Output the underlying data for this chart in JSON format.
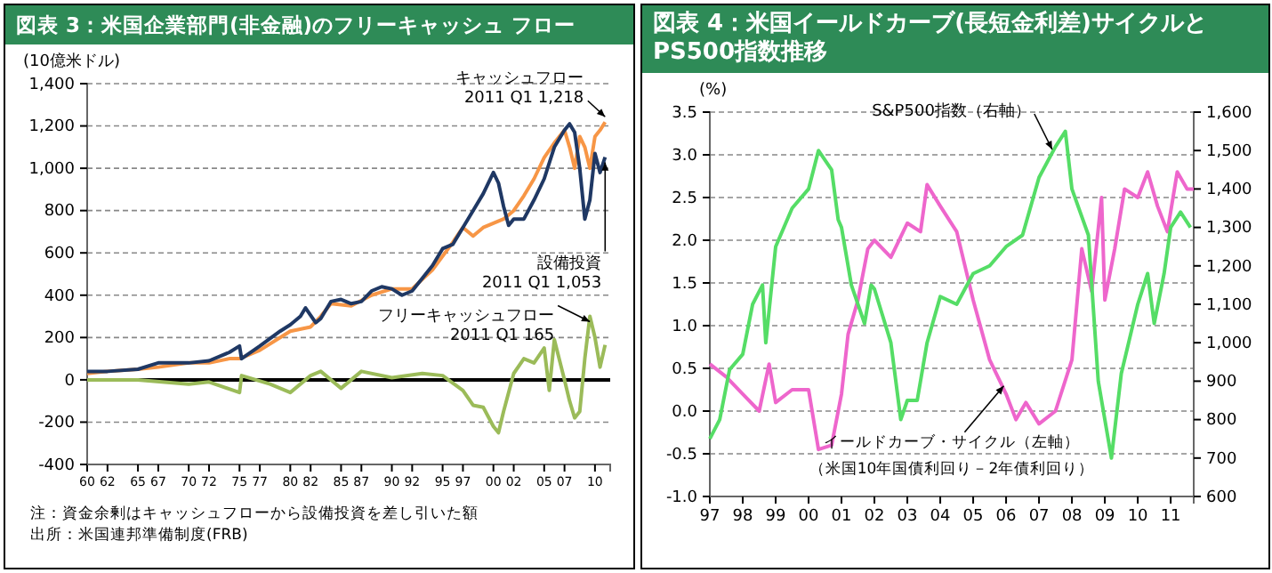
{
  "chart_data": [
    {
      "type": "line",
      "title": "図表 3：米国企業部門(非金融)のフリーキャッシュ フロー",
      "ylabel": "(10億米ドル)",
      "xlim": [
        1960,
        2011.5
      ],
      "xticks": [
        {
          "value": 1960,
          "label": "60"
        },
        {
          "value": 1962,
          "label": "62"
        },
        {
          "value": 1965,
          "label": "65"
        },
        {
          "value": 1967,
          "label": "67"
        },
        {
          "value": 1970,
          "label": "70"
        },
        {
          "value": 1972,
          "label": "72"
        },
        {
          "value": 1975,
          "label": "75"
        },
        {
          "value": 1977,
          "label": "77"
        },
        {
          "value": 1980,
          "label": "80"
        },
        {
          "value": 1982,
          "label": "82"
        },
        {
          "value": 1985,
          "label": "85"
        },
        {
          "value": 1987,
          "label": "87"
        },
        {
          "value": 1990,
          "label": "90"
        },
        {
          "value": 1992,
          "label": "92"
        },
        {
          "value": 1995,
          "label": "95"
        },
        {
          "value": 1997,
          "label": "97"
        },
        {
          "value": 2000,
          "label": "00"
        },
        {
          "value": 2002,
          "label": "02"
        },
        {
          "value": 2005,
          "label": "05"
        },
        {
          "value": 2007,
          "label": "07"
        },
        {
          "value": 2010,
          "label": "10"
        }
      ],
      "ylim": [
        -400,
        1400
      ],
      "yticks": [
        {
          "value": -400,
          "label": "-400"
        },
        {
          "value": -200,
          "label": "-200"
        },
        {
          "value": 0,
          "label": "0"
        },
        {
          "value": 200,
          "label": "200"
        },
        {
          "value": 400,
          "label": "400"
        },
        {
          "value": 600,
          "label": "600"
        },
        {
          "value": 800,
          "label": "800"
        },
        {
          "value": 1000,
          "label": "1,000"
        },
        {
          "value": 1200,
          "label": "1,200"
        },
        {
          "value": 1400,
          "label": "1,400"
        }
      ],
      "grid": "y",
      "marker": "none",
      "line_style": "solid",
      "series": [
        {
          "color": "#f79646",
          "x": [
            1960,
            1962,
            1965,
            1967,
            1970,
            1972,
            1974,
            1975,
            1977,
            1980,
            1982,
            1983,
            1984,
            1986,
            1988,
            1990,
            1992,
            1994,
            1996,
            1997,
            1998,
            1999,
            2000,
            2001,
            2002,
            2003,
            2004,
            2005,
            2006,
            2007,
            2007.5,
            2008,
            2008.5,
            2009,
            2009.5,
            2010,
            2010.5,
            2011
          ],
          "values": [
            30,
            40,
            50,
            60,
            80,
            80,
            100,
            100,
            140,
            230,
            250,
            300,
            360,
            350,
            400,
            430,
            430,
            520,
            650,
            720,
            680,
            720,
            740,
            760,
            800,
            870,
            950,
            1050,
            1120,
            1180,
            1100,
            1000,
            1150,
            1100,
            1000,
            1150,
            1180,
            1218
          ]
        },
        {
          "color": "#1f3864",
          "x": [
            1960,
            1962,
            1965,
            1967,
            1970,
            1972,
            1974,
            1975,
            1975.2,
            1977,
            1979,
            1980,
            1981,
            1981.5,
            1982.5,
            1983,
            1984,
            1985,
            1986,
            1987,
            1988,
            1989,
            1990,
            1991,
            1992,
            1993,
            1994,
            1995,
            1996,
            1997,
            1998,
            1999,
            2000,
            2000.5,
            2001,
            2001.5,
            2002,
            2003,
            2004,
            2005,
            2006,
            2007,
            2007.5,
            2008,
            2008.5,
            2009,
            2009.5,
            2010,
            2010.5,
            2011
          ],
          "values": [
            40,
            40,
            50,
            80,
            80,
            90,
            130,
            160,
            100,
            160,
            230,
            260,
            300,
            340,
            270,
            290,
            370,
            380,
            360,
            370,
            420,
            440,
            430,
            400,
            420,
            480,
            540,
            620,
            640,
            720,
            800,
            880,
            980,
            930,
            820,
            730,
            760,
            760,
            850,
            950,
            1100,
            1180,
            1210,
            1170,
            1000,
            760,
            850,
            1070,
            980,
            1053
          ]
        },
        {
          "color": "#9bbb59",
          "x": [
            1960,
            1965,
            1970,
            1972,
            1975,
            1975.2,
            1978,
            1980,
            1982,
            1983,
            1985,
            1987,
            1990,
            1993,
            1995,
            1997,
            1998,
            1999,
            2000,
            2000.5,
            2001,
            2002,
            2003,
            2004,
            2005,
            2005.5,
            2006,
            2007,
            2007.5,
            2008,
            2008.5,
            2009,
            2009.5,
            2010,
            2010.5,
            2011
          ],
          "values": [
            0,
            0,
            -20,
            -10,
            -60,
            20,
            -20,
            -60,
            20,
            40,
            -40,
            40,
            10,
            30,
            20,
            -50,
            -120,
            -130,
            -220,
            -250,
            -150,
            30,
            100,
            80,
            150,
            -50,
            190,
            0,
            -100,
            -180,
            -150,
            100,
            300,
            200,
            60,
            165
          ]
        }
      ],
      "ref_lines": [
        {
          "axis": "y",
          "value": 0,
          "color": "#000000"
        }
      ],
      "annotations": [
        {
          "text": "キャッシュフロー\n2011 Q1  1,218",
          "x": 2011,
          "y": 1218
        },
        {
          "text": "設備投資\n2011 Q1  1,053",
          "x": 2011,
          "y": 1053
        },
        {
          "text": "フリーキャッシュフロー\n2011 Q1  165",
          "x": 2009.5,
          "y": 300
        },
        "注：資金余剰はキャッシュフローから設備投資を差し引いた額",
        "出所：米国連邦準備制度(FRB)"
      ]
    },
    {
      "type": "line",
      "title": "図表 4：米国イールドカーブ(長短金利差)サイクルとPS500指数推移",
      "ylabel": "(%)",
      "xlim": [
        1997,
        2011.7
      ],
      "xticks": [
        {
          "value": 1997,
          "label": "97"
        },
        {
          "value": 1998,
          "label": "98"
        },
        {
          "value": 1999,
          "label": "99"
        },
        {
          "value": 2000,
          "label": "00"
        },
        {
          "value": 2001,
          "label": "01"
        },
        {
          "value": 2002,
          "label": "02"
        },
        {
          "value": 2003,
          "label": "03"
        },
        {
          "value": 2004,
          "label": "04"
        },
        {
          "value": 2005,
          "label": "05"
        },
        {
          "value": 2006,
          "label": "06"
        },
        {
          "value": 2007,
          "label": "07"
        },
        {
          "value": 2008,
          "label": "08"
        },
        {
          "value": 2009,
          "label": "09"
        },
        {
          "value": 2010,
          "label": "10"
        },
        {
          "value": 2011,
          "label": "11"
        }
      ],
      "ylim": [
        -1,
        3.5
      ],
      "yticks": [
        {
          "value": -1,
          "label": "-1.0"
        },
        {
          "value": -0.5,
          "label": "-0.5"
        },
        {
          "value": 0,
          "label": "0.0"
        },
        {
          "value": 0.5,
          "label": "0.5"
        },
        {
          "value": 1,
          "label": "1.0"
        },
        {
          "value": 1.5,
          "label": "1.5"
        },
        {
          "value": 2,
          "label": "2.0"
        },
        {
          "value": 2.5,
          "label": "2.5"
        },
        {
          "value": 3,
          "label": "3.0"
        },
        {
          "value": 3.5,
          "label": "3.5"
        }
      ],
      "y2lim": [
        600,
        1600
      ],
      "y2ticks": [
        {
          "value": 600,
          "label": "600"
        },
        {
          "value": 700,
          "label": "700"
        },
        {
          "value": 800,
          "label": "800"
        },
        {
          "value": 900,
          "label": "900"
        },
        {
          "value": 1000,
          "label": "1,000"
        },
        {
          "value": 1100,
          "label": "1,100"
        },
        {
          "value": 1200,
          "label": "1,200"
        },
        {
          "value": 1300,
          "label": "1,300"
        },
        {
          "value": 1400,
          "label": "1,400"
        },
        {
          "value": 1500,
          "label": "1,500"
        },
        {
          "value": 1600,
          "label": "1,600"
        }
      ],
      "grid": "y",
      "marker": "none",
      "line_style": "solid",
      "series": [
        {
          "color": "#ee66cc",
          "x": [
            1997,
            1997.5,
            1998,
            1998.5,
            1998.8,
            1999,
            1999.5,
            2000,
            2000.3,
            2000.7,
            2001,
            2001.2,
            2001.5,
            2001.8,
            2002,
            2002.5,
            2003,
            2003.4,
            2003.6,
            2004,
            2004.5,
            2005,
            2005.5,
            2006,
            2006.3,
            2006.6,
            2007,
            2007.5,
            2008,
            2008.3,
            2008.6,
            2008.9,
            2009,
            2009.3,
            2009.6,
            2010,
            2010.3,
            2010.6,
            2010.9,
            2011.2,
            2011.5,
            2011.7
          ],
          "values": [
            0.55,
            0.4,
            0.2,
            0,
            0.55,
            0.1,
            0.25,
            0.25,
            -0.45,
            -0.4,
            0.2,
            0.9,
            1.3,
            1.9,
            2,
            1.8,
            2.2,
            2.1,
            2.65,
            2.4,
            2.1,
            1.3,
            0.6,
            0.2,
            -0.1,
            0.1,
            -0.15,
            0,
            0.6,
            1.9,
            1.4,
            2.5,
            1.3,
            1.9,
            2.6,
            2.5,
            2.8,
            2.4,
            2.1,
            2.8,
            2.6,
            2.6
          ]
        },
        {
          "color": "#55dd66",
          "axis": "y2",
          "x": [
            1997,
            1997.3,
            1997.6,
            1998,
            1998.3,
            1998.6,
            1998.7,
            1999,
            1999.5,
            2000,
            2000.3,
            2000.7,
            2000.9,
            2001,
            2001.3,
            2001.7,
            2001.9,
            2002,
            2002.5,
            2002.8,
            2003,
            2003.3,
            2003.6,
            2004,
            2004.5,
            2005,
            2005.5,
            2006,
            2006.5,
            2007,
            2007.5,
            2007.8,
            2008,
            2008.5,
            2008.8,
            2009.2,
            2009.5,
            2010,
            2010.3,
            2010.5,
            2010.8,
            2011,
            2011.3,
            2011.6
          ],
          "values": [
            750,
            800,
            930,
            970,
            1100,
            1150,
            1000,
            1250,
            1350,
            1400,
            1500,
            1450,
            1320,
            1300,
            1150,
            1050,
            1150,
            1140,
            1000,
            800,
            850,
            850,
            1000,
            1120,
            1100,
            1180,
            1200,
            1250,
            1280,
            1430,
            1510,
            1550,
            1400,
            1280,
            900,
            700,
            920,
            1100,
            1180,
            1050,
            1180,
            1300,
            1340,
            1300
          ]
        }
      ],
      "annotations": [
        {
          "text": "S&P500指数（右軸）",
          "x": 2007.4,
          "y": 3.0
        },
        "イールドカーブ・サイクル（左軸）",
        "（米国10年国債利回り－2年債利回り）"
      ]
    }
  ]
}
